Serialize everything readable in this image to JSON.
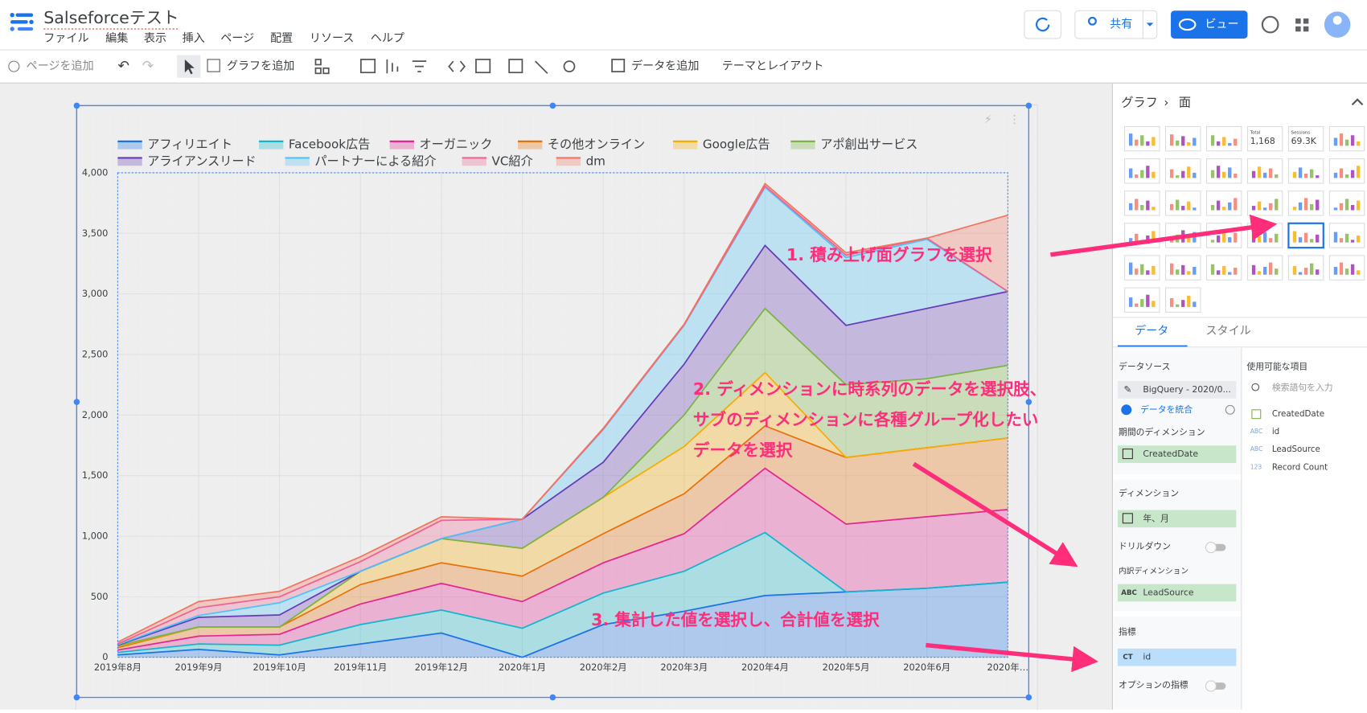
{
  "app": {
    "title": "Salseforceテスト",
    "menu": [
      "ファイル",
      "編集",
      "表示",
      "挿入",
      "ページ",
      "配置",
      "リソース",
      "ヘルプ"
    ],
    "share": "共有",
    "view": "ビュー"
  },
  "toolbar": {
    "add_page": "ページを追加",
    "add_chart": "グラフを追加",
    "add_data": "データを追加",
    "theme": "テーマとレイアウト"
  },
  "panel": {
    "breadcrumb": [
      "グラフ",
      "面"
    ],
    "icons": {
      "total_label": "Total",
      "total_value": "1,168",
      "sessions_label": "Sessions",
      "sessions_value": "69.3K"
    },
    "tabs": [
      "データ",
      "スタイル"
    ],
    "data_source_label": "データソース",
    "data_source": "BigQuery - 2020/0...",
    "blend": "データを統合",
    "period_dimension_label": "期間のディメンション",
    "period_dimension": "CreatedDate",
    "dimension_label": "ディメンション",
    "dimension": "年、月",
    "drilldown": "ドリルダウン",
    "breakdown_label": "内訳ディメンション",
    "breakdown_type": "ABC",
    "breakdown": "LeadSource",
    "metric_label": "指標",
    "metric_type": "CT",
    "metric": "id",
    "optional_metric": "オプションの指標",
    "fields_label": "使用可能な項目",
    "search": "検索語句を入力",
    "fields": [
      {
        "type": "ABC",
        "name": "id"
      },
      {
        "type": "ABC",
        "name": "LeadSource"
      },
      {
        "type": "123",
        "name": "Record Count"
      }
    ],
    "date_field": "CreatedDate"
  },
  "annotations": {
    "step1": "1. 積み上げ面グラフを選択",
    "step2": [
      "2. ディメンションに時系列のデータを選択肢、",
      "サブのディメンションに各種グループ化したい",
      "データを選択"
    ],
    "step3": "3. 集計した値を選択し、合計値を選択"
  },
  "chart_data": {
    "type": "stacked_area",
    "categories": [
      "2019年8月",
      "2019年9月",
      "2019年10月",
      "2019年11月",
      "2019年12月",
      "2020年1月",
      "2020年2月",
      "2020年3月",
      "2020年4月",
      "2020年5月",
      "2020年6月",
      "2020年…"
    ],
    "series": [
      {
        "name": "アフィリエイト",
        "color": "#1a73e8",
        "values": [
          20,
          65,
          20,
          110,
          200,
          0,
          270,
          380,
          510,
          540,
          570,
          620
        ]
      },
      {
        "name": "Facebook広告",
        "color": "#12b5cb",
        "values": [
          20,
          45,
          80,
          160,
          190,
          240,
          260,
          330,
          520,
          0,
          0,
          0
        ]
      },
      {
        "name": "オーガニック",
        "color": "#e52592",
        "values": [
          20,
          65,
          90,
          170,
          220,
          220,
          250,
          310,
          530,
          560,
          590,
          600
        ]
      },
      {
        "name": "その他オンライン",
        "color": "#e8710a",
        "values": [
          20,
          75,
          60,
          160,
          170,
          210,
          240,
          330,
          350,
          550,
          570,
          590
        ]
      },
      {
        "name": "Google広告",
        "color": "#f9ab00",
        "values": [
          10,
          0,
          0,
          110,
          200,
          230,
          300,
          390,
          440,
          0,
          0,
          0
        ]
      },
      {
        "name": "アポ創出サービス",
        "color": "#7cb342",
        "values": [
          5,
          0,
          0,
          0,
          0,
          0,
          0,
          260,
          530,
          600,
          570,
          600
        ]
      },
      {
        "name": "アライアンスリード",
        "color": "#673ab7",
        "values": [
          5,
          80,
          100,
          0,
          0,
          240,
          290,
          420,
          520,
          490,
          580,
          610
        ]
      },
      {
        "name": "パートナーによる紹介",
        "color": "#4fc3f7",
        "values": [
          5,
          15,
          100,
          0,
          0,
          0,
          270,
          320,
          480,
          560,
          570,
          0
        ]
      },
      {
        "name": "VC紹介",
        "color": "#f06292",
        "values": [
          5,
          65,
          50,
          80,
          150,
          0,
          5,
          5,
          10,
          20,
          10,
          0
        ]
      },
      {
        "name": "dm",
        "color": "#f4735f",
        "values": [
          15,
          50,
          45,
          40,
          30,
          0,
          5,
          5,
          20,
          20,
          0,
          630
        ]
      }
    ],
    "ylim": [
      0,
      4000
    ],
    "yticks": [
      0,
      500,
      {
        "value": 1000,
        "label": "1,000"
      },
      {
        "value": 1500,
        "label": "1,500"
      },
      {
        "value": 2000,
        "label": "2,000"
      },
      {
        "value": 2500,
        "label": "2,500"
      },
      {
        "value": 3000,
        "label": "3,000"
      },
      {
        "value": 3500,
        "label": "3,500"
      },
      {
        "value": 4000,
        "label": "4,000"
      }
    ],
    "grid": true,
    "legend": "top"
  }
}
